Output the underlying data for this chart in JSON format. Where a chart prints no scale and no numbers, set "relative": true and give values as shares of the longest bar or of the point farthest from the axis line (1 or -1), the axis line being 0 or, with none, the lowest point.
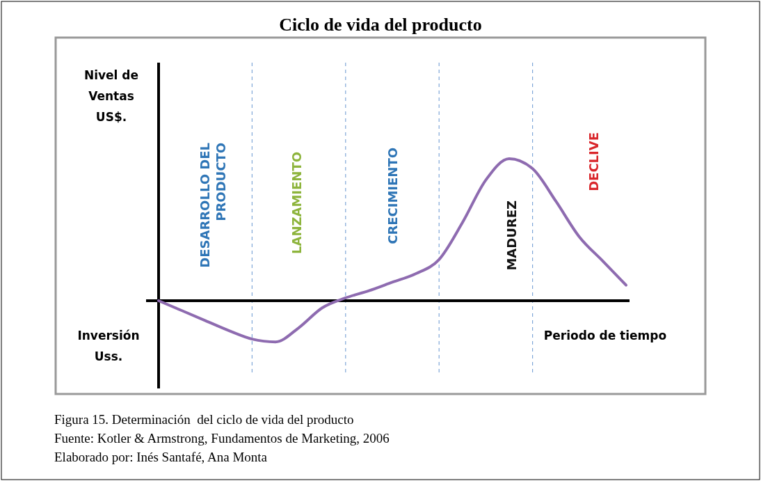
{
  "chart_data": {
    "type": "line",
    "title": "Ciclo de vida del producto",
    "ylabel": "Nivel de Ventas US$.",
    "xlabel": "Periodo de tiempo",
    "relative": true,
    "grid": "x",
    "categories": [
      null,
      null,
      null,
      null,
      null,
      null,
      null,
      null,
      null,
      null,
      null,
      null,
      null,
      null,
      null,
      null,
      null,
      null,
      null,
      null,
      null
    ],
    "series": [
      {
        "color": "#8e6bb0",
        "values": [
          0,
          -0.07,
          -0.14,
          -0.21,
          -0.27,
          -0.29,
          -0.19,
          -0.05,
          0.02,
          0.07,
          0.13,
          0.19,
          0.29,
          0.55,
          0.85,
          1.0,
          0.93,
          0.7,
          0.45,
          0.28,
          0.11
        ]
      }
    ],
    "annotations": [
      "DESARROLLO DEL PRODUCTO",
      "LANZAMIENTO",
      "CRECIMIENTO",
      "MADUREZ",
      "DECLIVE",
      "Inversión Uss.",
      "Figura 15. Determinación  del ciclo de vida del producto",
      "Fuente: Kotler & Armstrong, Fundamentos de Marketing, 2006",
      "Elaborado por: Inés Santafé, Ana Monta"
    ]
  }
}
